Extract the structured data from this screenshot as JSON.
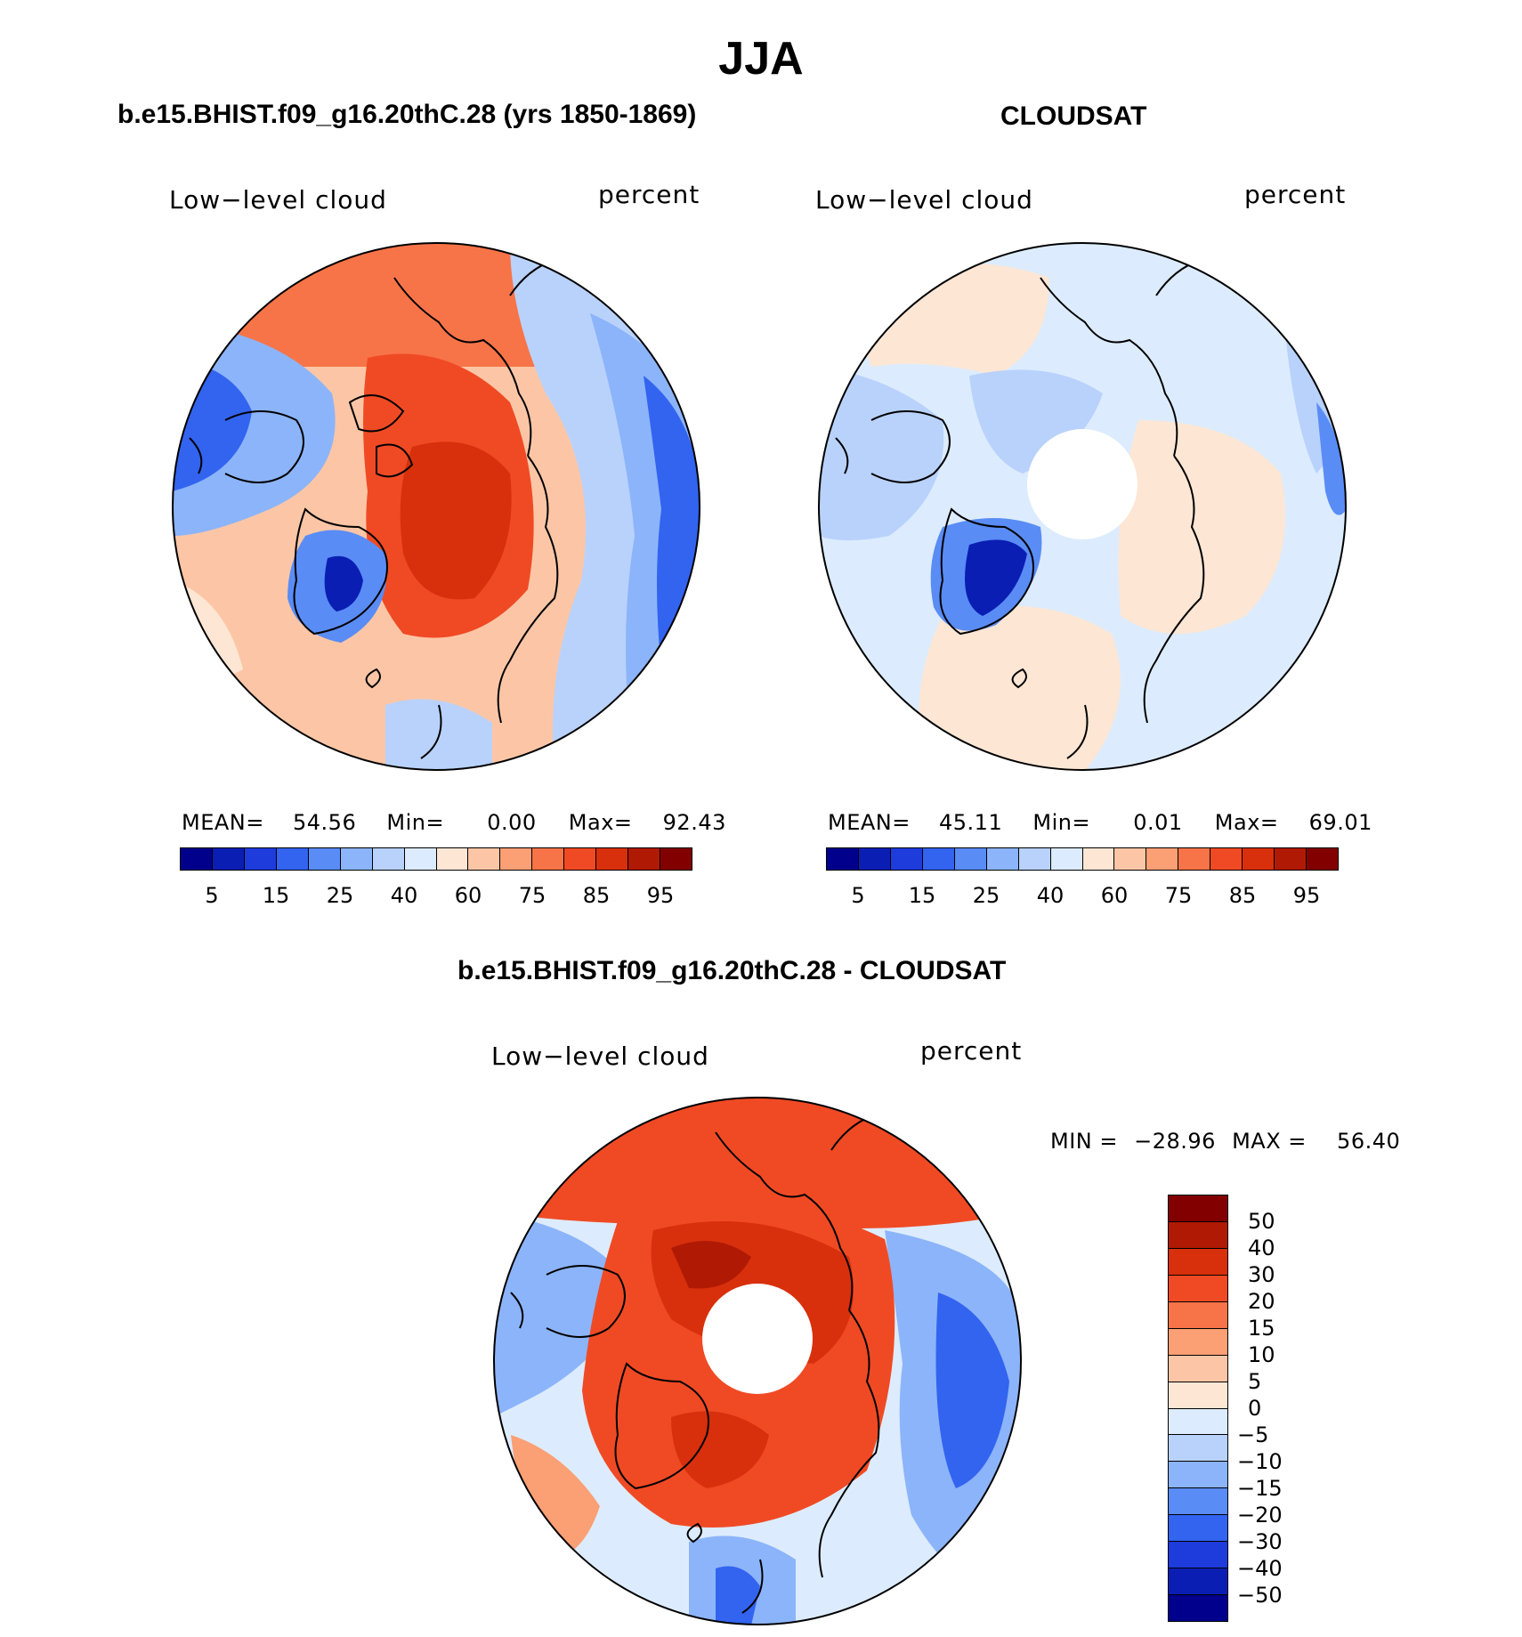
{
  "title": "JJA",
  "label_field": "Low−level cloud",
  "label_units": "percent",
  "abs_levels": [
    "5",
    "15",
    "25",
    "40",
    "60",
    "75",
    "85",
    "95"
  ],
  "abs_colors": [
    "#00008c",
    "#0a1eb4",
    "#1e3cdc",
    "#3264f0",
    "#5a8cf5",
    "#8cb4fa",
    "#b9d2fc",
    "#dcecfe",
    "#fde6d4",
    "#fcc6a6",
    "#fb9f74",
    "#f77448",
    "#f04a24",
    "#d8300c",
    "#b01a04",
    "#820000"
  ],
  "diff_levels": [
    "50",
    "40",
    "30",
    "20",
    "15",
    "10",
    "5",
    "0",
    "−5",
    "−10",
    "−15",
    "−20",
    "−30",
    "−40",
    "−50"
  ],
  "diff_colors": [
    "#820000",
    "#b01a04",
    "#d8300c",
    "#f04a24",
    "#f77448",
    "#fb9f74",
    "#fcc6a6",
    "#fde6d4",
    "#dcecfe",
    "#b9d2fc",
    "#8cb4fa",
    "#5a8cf5",
    "#3264f0",
    "#1e3cdc",
    "#0a1eb4",
    "#00008c"
  ],
  "panels": {
    "model": {
      "title": "b.e15.BHIST.f09_g16.20thC.28 (yrs 1850-1869)",
      "mean_label": "MEAN=",
      "mean": "54.56",
      "min_label": "Min=",
      "min": "0.00",
      "max_label": "Max=",
      "max": "92.43"
    },
    "obs": {
      "title": "CLOUDSAT",
      "mean_label": "MEAN=",
      "mean": "45.11",
      "min_label": "Min=",
      "min": "0.01",
      "max_label": "Max=",
      "max": "69.01"
    },
    "diff": {
      "title": "b.e15.BHIST.f09_g16.20thC.28 - CLOUDSAT",
      "min_label": "MIN =",
      "min": "−28.96",
      "max_label": "MAX =",
      "max": "56.40"
    }
  }
}
